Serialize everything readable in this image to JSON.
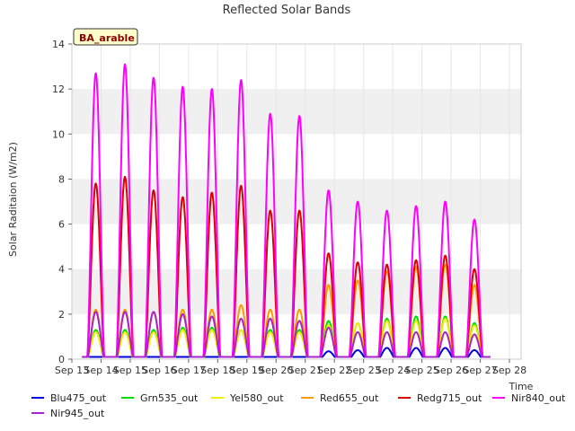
{
  "chart_data": {
    "type": "line",
    "title": "Reflected Solar Bands",
    "ylabel": "Solar Raditaion (W/m2)",
    "xlabel": "Time",
    "badge": "BA_arable",
    "ylim": [
      0,
      14
    ],
    "xlim": [
      0,
      15.4
    ],
    "yticks": [
      0,
      2,
      4,
      6,
      8,
      10,
      12,
      14
    ],
    "xtick_labels": [
      "Sep 13",
      "Sep 14",
      "Sep 15",
      "Sep 16",
      "Sep 17",
      "Sep 18",
      "Sep 19",
      "Sep 20",
      "Sep 21",
      "Sep 22",
      "Sep 23",
      "Sep 24",
      "Sep 25",
      "Sep 26",
      "Sep 27",
      "Sep 28"
    ],
    "grid": "horizontal bands",
    "legend_position": "bottom",
    "day_centers": [
      0.82,
      1.82,
      2.8,
      3.8,
      4.8,
      5.8,
      6.8,
      7.8,
      8.8,
      9.8,
      10.8,
      11.8,
      12.8,
      13.8
    ],
    "series": [
      {
        "name": "Blu475_out",
        "color": "#0000dd",
        "daily_peaks": [
          0.05,
          0.07,
          0.05,
          0.05,
          0.06,
          0.06,
          0.06,
          0.07,
          0.35,
          0.4,
          0.5,
          0.5,
          0.5,
          0.4
        ]
      },
      {
        "name": "Grn535_out",
        "color": "#00dd00",
        "daily_peaks": [
          1.3,
          1.3,
          1.3,
          1.4,
          1.4,
          1.3,
          1.3,
          1.3,
          1.7,
          1.6,
          1.8,
          1.9,
          1.9,
          1.6
        ]
      },
      {
        "name": "Yel580_out",
        "color": "#eeee00",
        "daily_peaks": [
          1.2,
          1.2,
          1.2,
          1.3,
          1.3,
          1.3,
          1.2,
          1.2,
          1.5,
          1.6,
          1.7,
          1.7,
          1.8,
          1.5
        ]
      },
      {
        "name": "Red655_out",
        "color": "#ff9900",
        "daily_peaks": [
          2.2,
          2.2,
          2.1,
          2.2,
          2.2,
          2.4,
          2.2,
          2.2,
          3.3,
          3.5,
          3.9,
          4.1,
          4.2,
          3.3
        ]
      },
      {
        "name": "Redg715_out",
        "color": "#dd0000",
        "daily_peaks": [
          7.8,
          8.1,
          7.5,
          7.2,
          7.4,
          7.7,
          6.6,
          6.6,
          4.7,
          4.3,
          4.2,
          4.4,
          4.6,
          4.0
        ]
      },
      {
        "name": "Nir840_out",
        "color": "#ff00ff",
        "daily_peaks": [
          12.7,
          13.1,
          12.5,
          12.1,
          12.0,
          12.4,
          10.9,
          10.8,
          7.5,
          7.0,
          6.6,
          6.8,
          7.0,
          6.2
        ]
      },
      {
        "name": "Nir945_out",
        "color": "#aa22cc",
        "daily_peaks": [
          2.1,
          2.1,
          2.1,
          2.0,
          1.9,
          1.8,
          1.8,
          1.7,
          1.4,
          1.2,
          1.2,
          1.2,
          1.2,
          1.1
        ]
      }
    ]
  }
}
